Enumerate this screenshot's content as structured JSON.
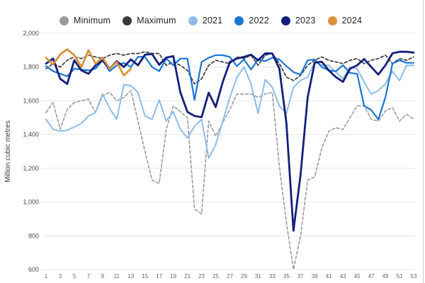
{
  "chart_data": {
    "type": "line",
    "title": "",
    "xlabel": "",
    "ylabel": "Million cubic metres",
    "xlim": [
      1,
      53
    ],
    "ylim": [
      600,
      2000
    ],
    "grid": "horizontal",
    "legend_position": "top",
    "x_ticks": [
      1,
      3,
      5,
      7,
      9,
      11,
      13,
      15,
      17,
      19,
      21,
      23,
      25,
      27,
      29,
      31,
      33,
      35,
      37,
      39,
      41,
      43,
      45,
      47,
      49,
      51,
      53
    ],
    "y_ticks": [
      600,
      800,
      1000,
      1200,
      1400,
      1600,
      1800,
      2000
    ],
    "y_tick_labels": [
      "600",
      "800",
      "1,000",
      "1,200",
      "1,400",
      "1,600",
      "1,800",
      "2,000"
    ],
    "x_unit": "week number",
    "series": [
      {
        "name": "Minimum",
        "color": "#9a9a9a",
        "dash": true,
        "width": 1.6,
        "values": [
          1530,
          1590,
          1430,
          1550,
          1590,
          1600,
          1610,
          1530,
          1630,
          1650,
          1600,
          1620,
          1660,
          1480,
          1300,
          1130,
          1110,
          1430,
          1570,
          1535,
          1500,
          960,
          930,
          1480,
          1390,
          1470,
          1550,
          1640,
          1640,
          1640,
          1620,
          1640,
          1650,
          1210,
          880,
          600,
          800,
          1130,
          1150,
          1320,
          1420,
          1440,
          1430,
          1500,
          1570,
          1570,
          1490,
          1480,
          1540,
          1560,
          1480,
          1520,
          1490
        ]
      },
      {
        "name": "Maximum",
        "color": "#3a3a3a",
        "dash": true,
        "width": 1.7,
        "values": [
          1790,
          1820,
          1800,
          1840,
          1860,
          1850,
          1870,
          1860,
          1850,
          1870,
          1880,
          1870,
          1880,
          1880,
          1890,
          1880,
          1880,
          1810,
          1830,
          1810,
          1780,
          1700,
          1730,
          1810,
          1840,
          1830,
          1820,
          1860,
          1850,
          1870,
          1810,
          1870,
          1880,
          1820,
          1740,
          1720,
          1750,
          1810,
          1840,
          1860,
          1840,
          1830,
          1820,
          1840,
          1850,
          1820,
          1840,
          1850,
          1870,
          1820,
          1850,
          1840,
          1860
        ]
      },
      {
        "name": "2021",
        "color": "#8bbde8",
        "dash": false,
        "width": 2,
        "values": [
          1490,
          1430,
          1420,
          1425,
          1445,
          1465,
          1510,
          1530,
          1640,
          1555,
          1490,
          1695,
          1690,
          1650,
          1510,
          1490,
          1605,
          1480,
          1535,
          1430,
          1380,
          1450,
          1490,
          1260,
          1340,
          1480,
          1620,
          1740,
          1800,
          1700,
          1525,
          1725,
          1680,
          1570,
          1525,
          1680,
          1720,
          1740,
          1830,
          1810,
          1810,
          1770,
          1730,
          1800,
          1790,
          1710,
          1640,
          1660,
          1700,
          1775,
          1720,
          1810,
          1810
        ]
      },
      {
        "name": "2022",
        "color": "#1a75d2",
        "dash": false,
        "width": 2.2,
        "values": [
          1805,
          1775,
          1760,
          1745,
          1790,
          1785,
          1780,
          1790,
          1840,
          1775,
          1810,
          1825,
          1800,
          1860,
          1860,
          1800,
          1775,
          1850,
          1810,
          1850,
          1850,
          1605,
          1830,
          1855,
          1870,
          1870,
          1860,
          1805,
          1845,
          1785,
          1845,
          1835,
          1855,
          1845,
          1805,
          1770,
          1755,
          1840,
          1845,
          1800,
          1780,
          1775,
          1810,
          1765,
          1760,
          1570,
          1545,
          1490,
          1620,
          1820,
          1840,
          1825,
          1825
        ]
      },
      {
        "name": "2023",
        "color": "#141f7a",
        "dash": false,
        "width": 2.8,
        "values": [
          1820,
          1850,
          1730,
          1700,
          1840,
          1780,
          1760,
          1810,
          1840,
          1790,
          1835,
          1800,
          1845,
          1810,
          1873,
          1877,
          1813,
          1856,
          1864,
          1650,
          1534,
          1510,
          1503,
          1648,
          1563,
          1712,
          1830,
          1850,
          1860,
          1873,
          1839,
          1881,
          1880,
          1790,
          1470,
          830,
          1160,
          1620,
          1826,
          1831,
          1780,
          1740,
          1712,
          1790,
          1810,
          1847,
          1800,
          1755,
          1810,
          1881,
          1890,
          1890,
          1885
        ]
      },
      {
        "name": "2024",
        "color": "#d6943c",
        "dash": false,
        "width": 2.8,
        "values": [
          1855,
          1815,
          1875,
          1905,
          1870,
          1800,
          1900,
          1820,
          1855,
          1790,
          1830,
          1750,
          1790
        ]
      }
    ]
  }
}
